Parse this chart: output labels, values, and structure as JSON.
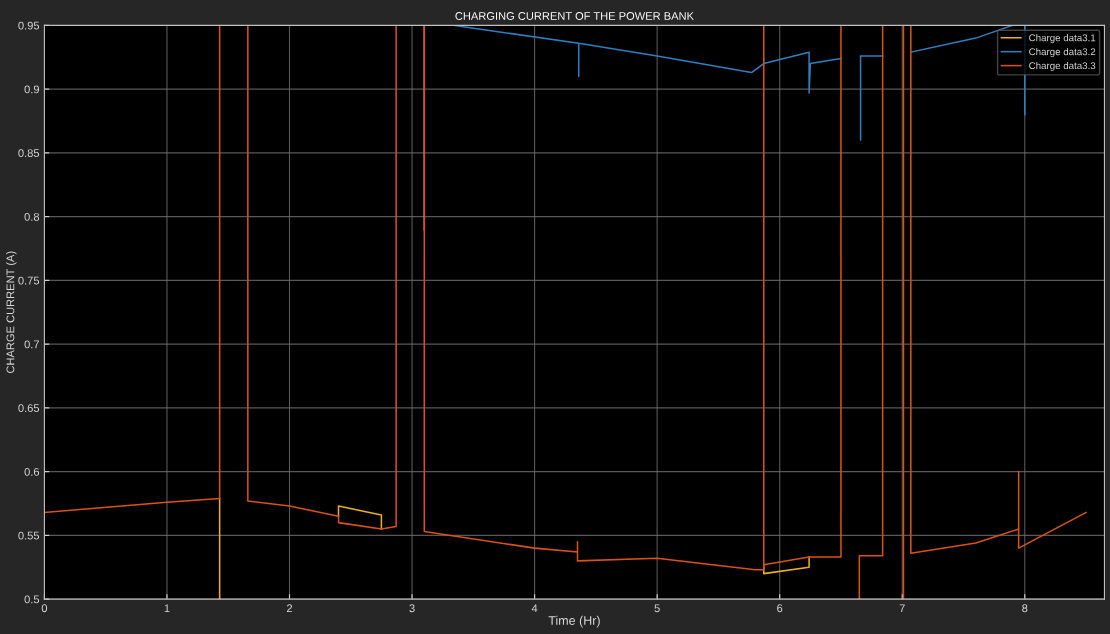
{
  "chart_data": {
    "type": "line",
    "title": "CHARGING CURRENT OF THE POWER BANK",
    "xlabel": "Time (Hr)",
    "ylabel": "CHARGE CURRENT (A)",
    "xlim": [
      0,
      8.65
    ],
    "xticks": [
      0,
      1,
      2,
      3,
      4,
      5,
      6,
      7,
      8
    ],
    "ylim": [
      0.5,
      0.95
    ],
    "yticks": [
      0.5,
      0.55,
      0.6,
      0.65,
      0.7,
      0.75,
      0.8,
      0.85,
      0.9,
      0.95
    ],
    "grid": true,
    "legend": "top right",
    "marker": "none",
    "line_style": "solid",
    "series": [
      {
        "name": "Charge data3.1",
        "color": "#edb120",
        "x": [
          1.43,
          1.43,
          null,
          2.4,
          2.4,
          2.75,
          2.75,
          null,
          3.1,
          3.1,
          null,
          5.87,
          5.87,
          6.24,
          6.24
        ],
        "values": [
          0.579,
          0.5,
          null,
          0.565,
          0.573,
          0.566,
          0.555,
          null,
          0.95,
          0.79,
          null,
          0.527,
          0.52,
          0.525,
          0.533
        ]
      },
      {
        "name": "Charge data3.2",
        "color": "#2f7fc0",
        "x": [
          3.34,
          4.36,
          4.36,
          4.36,
          5,
          5.77,
          5.87,
          6.24,
          6.24,
          6.25,
          6.5,
          null,
          6.66,
          6.66,
          6.66,
          6.84,
          null,
          7.07,
          7.6,
          7.9,
          null,
          8,
          8
        ],
        "values": [
          0.95,
          0.936,
          0.91,
          0.936,
          0.926,
          0.913,
          0.92,
          0.929,
          0.897,
          0.92,
          0.924,
          null,
          0.926,
          0.86,
          0.926,
          0.926,
          null,
          0.929,
          0.94,
          0.95,
          null,
          0.95,
          0.88
        ]
      },
      {
        "name": "Charge data3.3",
        "color": "#d95319",
        "x": [
          0,
          1,
          1.43,
          1.43,
          1.66,
          1.66,
          1.66,
          2,
          2.4,
          2.4,
          2.75,
          2.87,
          2.87,
          3.1,
          3.1,
          4,
          4.35,
          4.35,
          4.35,
          5,
          5.8,
          5.87,
          5.87,
          5.87,
          6.24,
          6.24,
          6.5,
          6.5,
          null,
          6.65,
          6.65,
          6.84,
          6.84,
          null,
          7.01,
          7.01,
          null,
          7.07,
          7.07,
          7.6,
          7.95,
          7.95,
          7.95,
          8.5
        ],
        "values": [
          0.568,
          0.576,
          0.579,
          0.95,
          0.95,
          0.7,
          0.577,
          0.573,
          0.565,
          0.56,
          0.555,
          0.557,
          0.95,
          0.95,
          0.553,
          0.54,
          0.537,
          0.545,
          0.53,
          0.532,
          0.523,
          0.523,
          0.95,
          0.527,
          0.533,
          0.533,
          0.533,
          0.95,
          null,
          0.5,
          0.534,
          0.534,
          0.95,
          null,
          0.95,
          0.5,
          null,
          0.95,
          0.536,
          0.544,
          0.555,
          0.6,
          0.54,
          0.568
        ]
      }
    ]
  }
}
